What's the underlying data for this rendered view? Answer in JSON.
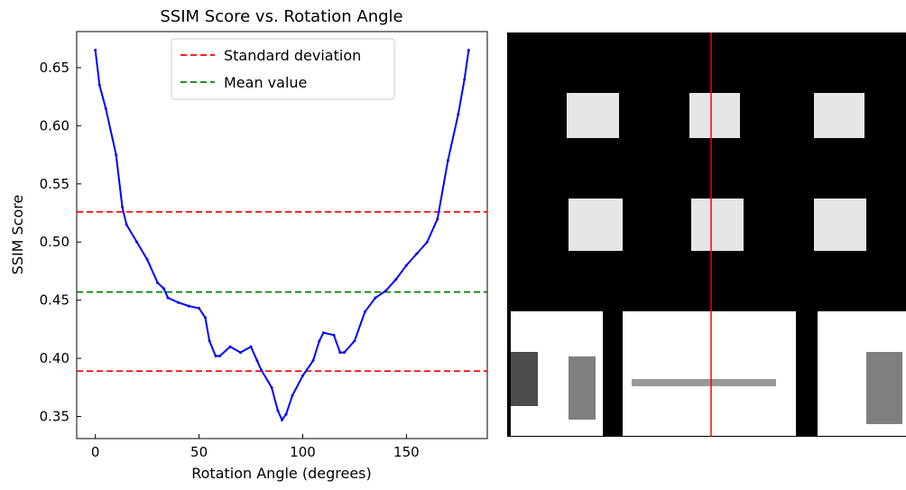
{
  "chart_data": {
    "type": "line",
    "title": "SSIM Score vs. Rotation Angle",
    "x_label": "Rotation Angle (degrees)",
    "y_label": "SSIM Score",
    "x": [
      0,
      2,
      5,
      10,
      13,
      15,
      20,
      25,
      30,
      33,
      35,
      40,
      45,
      50,
      53,
      55,
      58,
      60,
      65,
      70,
      75,
      78,
      80,
      85,
      88,
      90,
      92,
      95,
      100,
      105,
      108,
      110,
      115,
      118,
      120,
      125,
      130,
      135,
      140,
      145,
      150,
      155,
      160,
      165,
      170,
      175,
      178,
      180
    ],
    "series": [
      {
        "color": "#0000ff",
        "values": [
          0.665,
          0.635,
          0.615,
          0.575,
          0.53,
          0.515,
          0.5,
          0.485,
          0.465,
          0.46,
          0.452,
          0.448,
          0.445,
          0.443,
          0.435,
          0.415,
          0.402,
          0.402,
          0.41,
          0.405,
          0.41,
          0.398,
          0.39,
          0.375,
          0.355,
          0.347,
          0.352,
          0.368,
          0.385,
          0.398,
          0.415,
          0.422,
          0.42,
          0.405,
          0.405,
          0.415,
          0.44,
          0.452,
          0.458,
          0.468,
          0.48,
          0.49,
          0.5,
          0.52,
          0.57,
          0.61,
          0.64,
          0.665
        ]
      }
    ],
    "reference_lines": [
      {
        "name": "Standard deviation",
        "color": "#ff0000",
        "values": [
          0.526,
          0.389
        ]
      },
      {
        "name": "Mean value",
        "color": "#008000",
        "values": [
          0.457
        ]
      }
    ],
    "xlim": [
      -9,
      189
    ],
    "ylim": [
      0.331,
      0.681
    ],
    "xticks": [
      0,
      50,
      100,
      150
    ],
    "yticks": [
      0.35,
      {
        "value": 0.4,
        "label": "0.40"
      },
      0.45,
      {
        "value": 0.5,
        "label": "0.50"
      },
      0.55,
      {
        "value": 0.6,
        "label": "0.60"
      },
      0.65
    ]
  }
}
